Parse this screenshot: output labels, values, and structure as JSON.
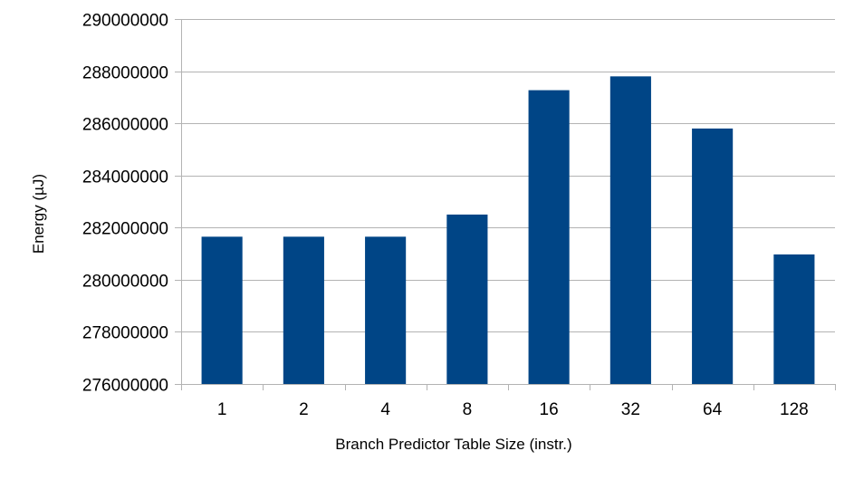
{
  "chart_data": {
    "type": "bar",
    "title": "",
    "xlabel": "Branch Predictor Table Size (instr.)",
    "ylabel": "Energy (µJ)",
    "categories": [
      "1",
      "2",
      "4",
      "8",
      "16",
      "32",
      "64",
      "128"
    ],
    "values": [
      281650000,
      281650000,
      281650000,
      282500000,
      287270000,
      287800000,
      285800000,
      280970000
    ],
    "ylim": [
      276000000,
      290000000
    ],
    "yticks": [
      "276000000",
      "278000000",
      "280000000",
      "282000000",
      "284000000",
      "286000000",
      "288000000",
      "290000000"
    ],
    "ytick_values": [
      276000000,
      278000000,
      280000000,
      282000000,
      284000000,
      286000000,
      288000000,
      290000000
    ],
    "grid": true,
    "legend": "none",
    "colors": {
      "bar": "#004586",
      "grid": "#b3b3b3",
      "axis": "#b3b3b3"
    }
  }
}
